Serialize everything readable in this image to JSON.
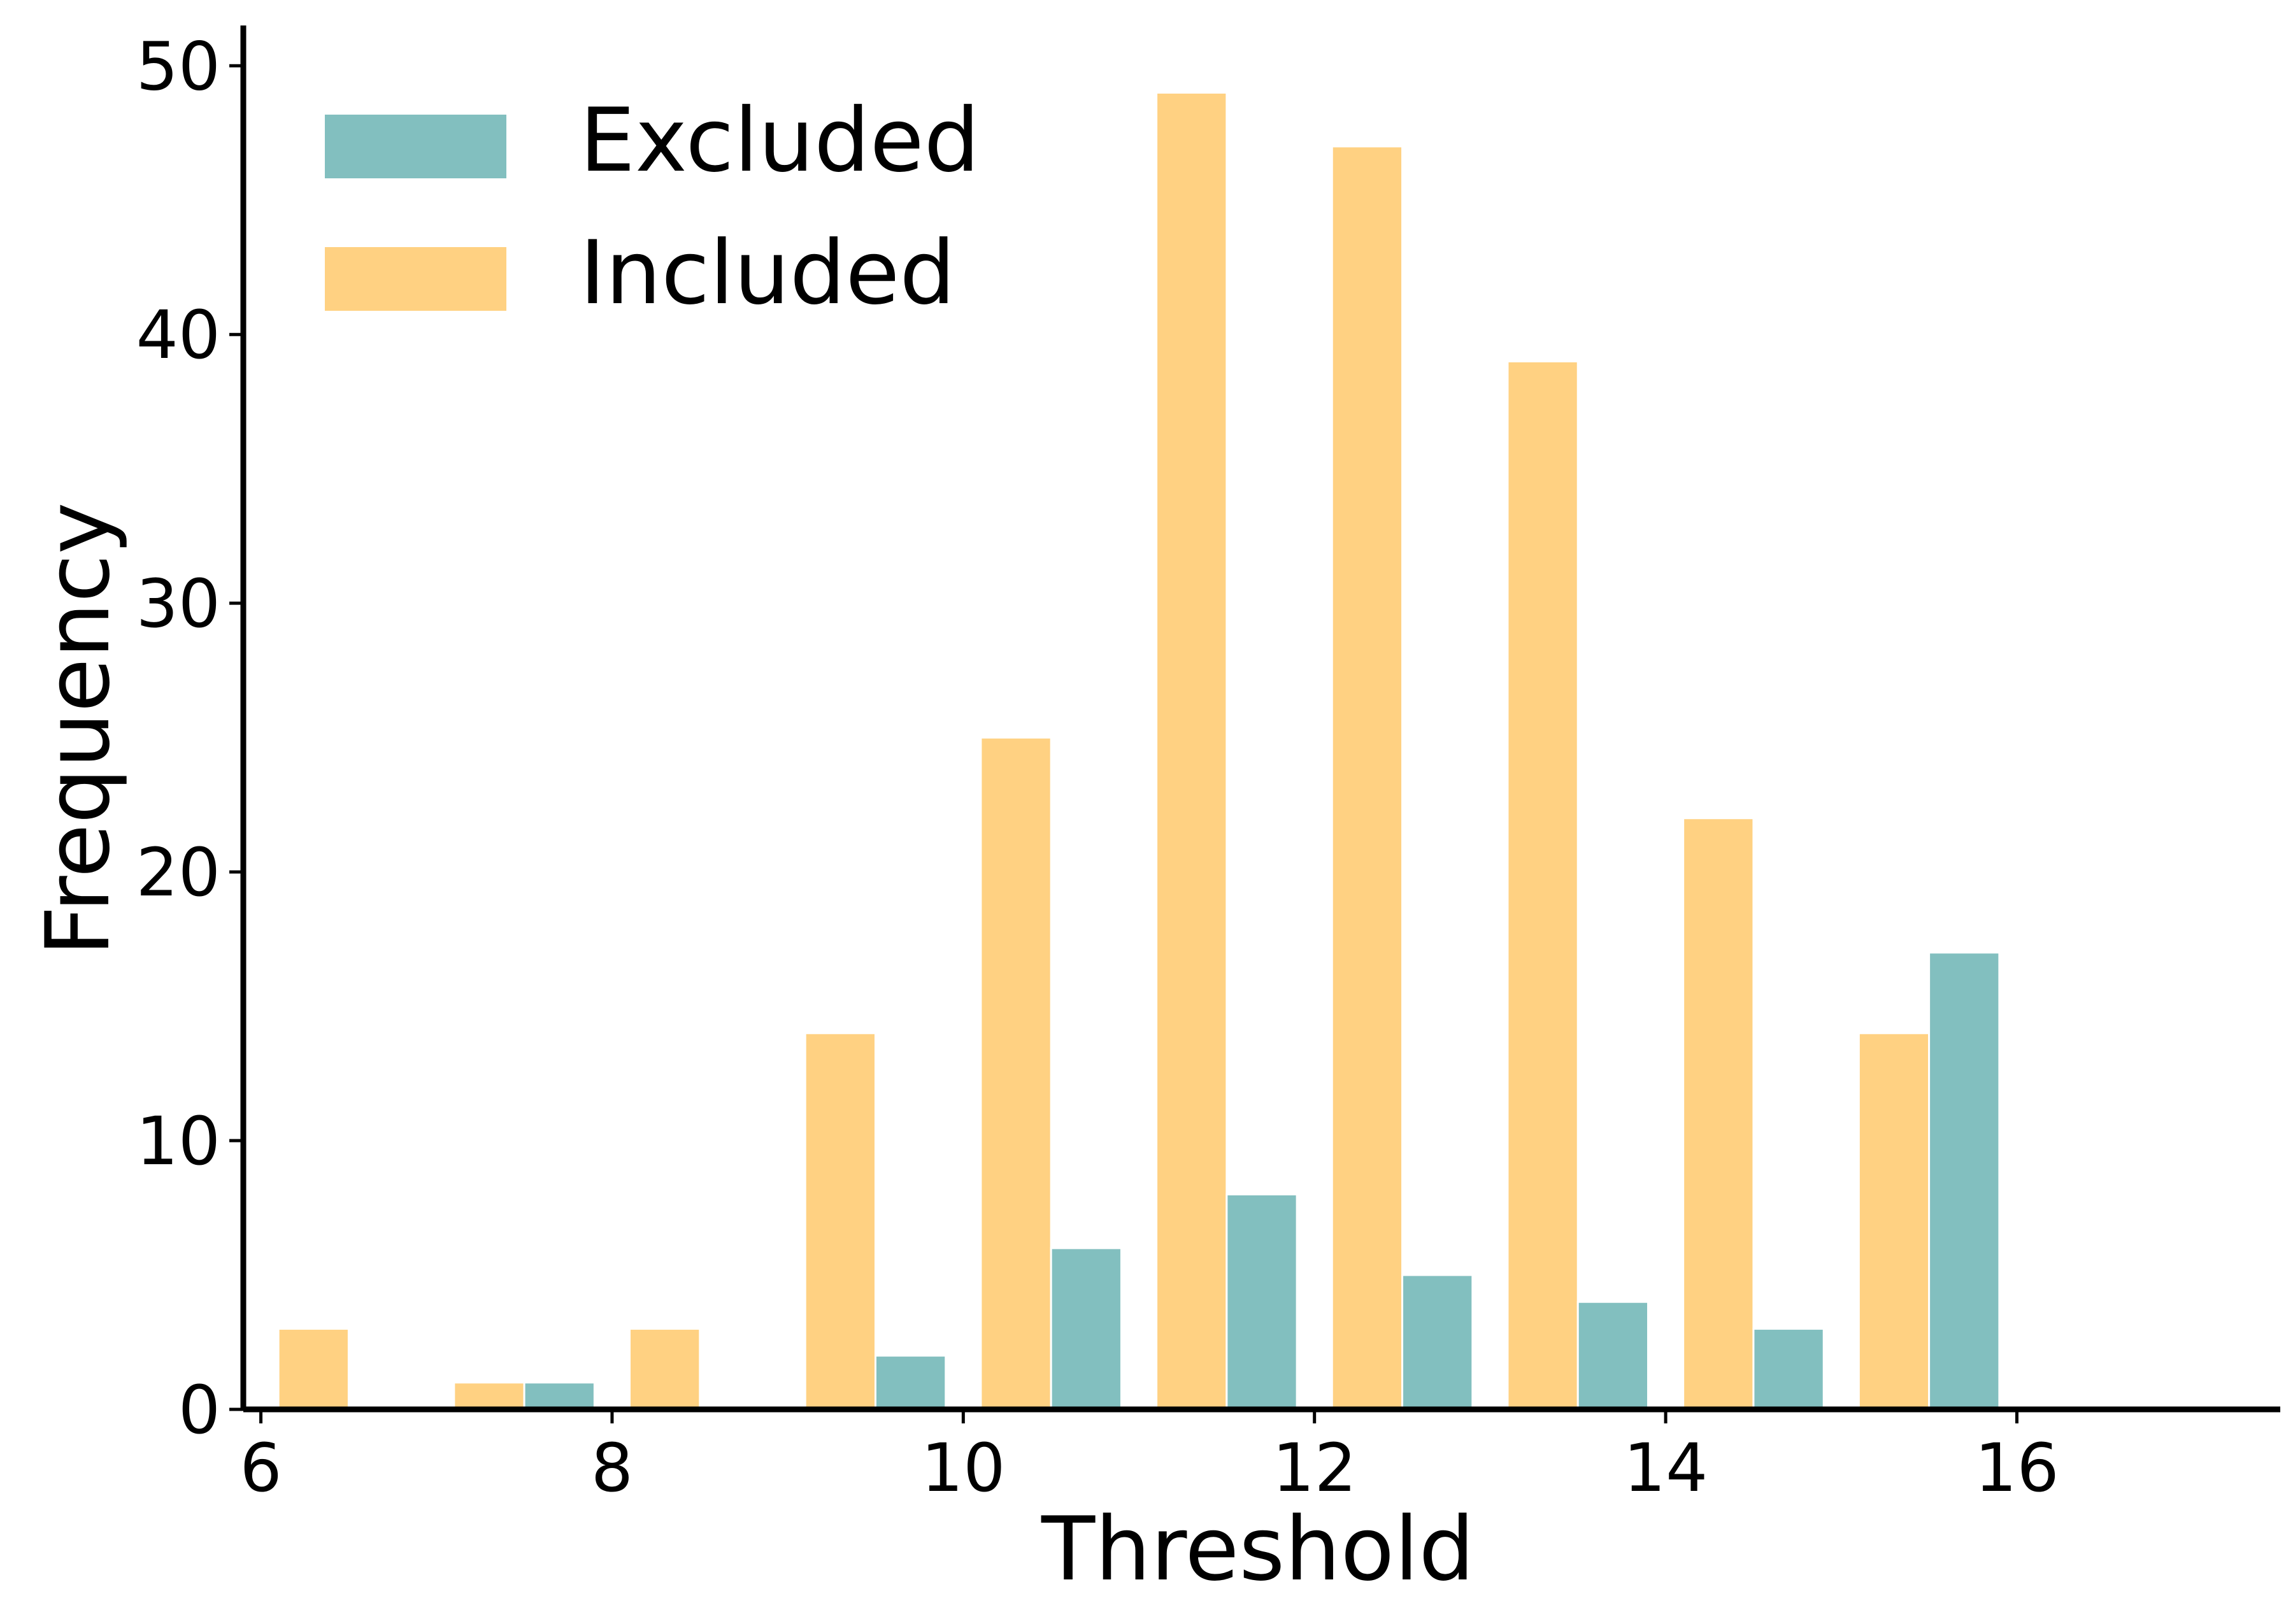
{
  "chart_data": {
    "type": "bar",
    "title": "",
    "xlabel": "Threshold",
    "ylabel": "Frequency",
    "xlim": [
      5.9,
      17.5
    ],
    "ylim": [
      0,
      51.5
    ],
    "xticks": [
      6,
      8,
      10,
      12,
      14,
      16
    ],
    "yticks": [
      0,
      10,
      20,
      30,
      40,
      50
    ],
    "grid": false,
    "legend_position": "top-left",
    "colors": {
      "Excluded": "#82bfbf",
      "Included": "#ffd182"
    },
    "series": [
      {
        "name": "Excluded",
        "bins": [
          [
            6,
            7
          ],
          [
            7,
            8
          ],
          [
            8,
            9
          ],
          [
            9,
            10
          ],
          [
            10,
            11
          ],
          [
            11,
            12
          ],
          [
            12,
            13
          ],
          [
            13,
            14
          ],
          [
            14,
            15
          ],
          [
            15,
            16
          ],
          [
            16,
            17
          ]
        ],
        "values": [
          0,
          1,
          0,
          2,
          6,
          8,
          5,
          4,
          3,
          17,
          0
        ]
      },
      {
        "name": "Included",
        "bins": [
          [
            6,
            7
          ],
          [
            7,
            8
          ],
          [
            8,
            9
          ],
          [
            9,
            10
          ],
          [
            10,
            11
          ],
          [
            11,
            12
          ],
          [
            12,
            13
          ],
          [
            13,
            14
          ],
          [
            14,
            15
          ],
          [
            15,
            16
          ],
          [
            16,
            17
          ]
        ],
        "values": [
          3,
          1,
          3,
          14,
          25,
          49,
          47,
          39,
          22,
          14,
          0
        ]
      }
    ]
  }
}
